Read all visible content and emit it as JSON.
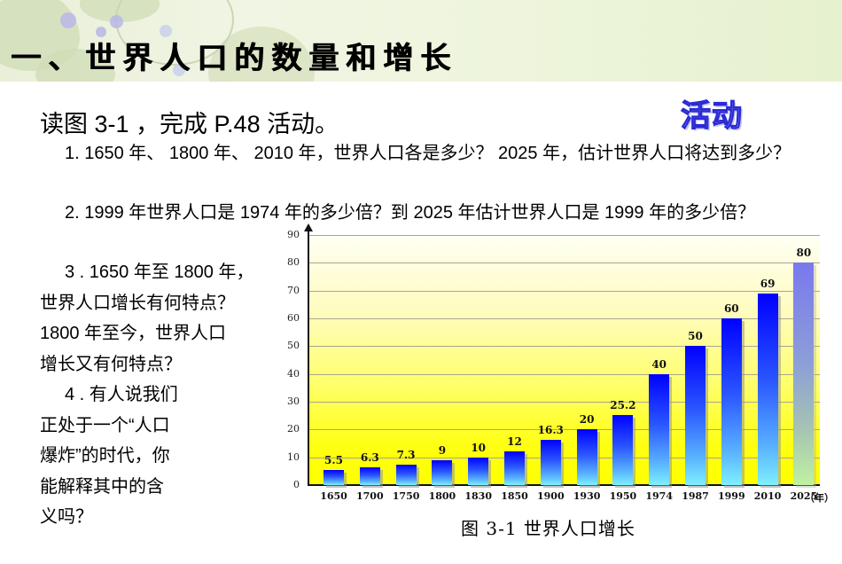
{
  "slide": {
    "title": "一、世界人口的数量和增长",
    "badge": "活动",
    "intro": "读图 3-1 ，完成 P.48 活动。",
    "questions": {
      "q1": "1. 1650 年、 1800 年、 2010 年，世界人口各是多少？ 2025 年，估计世界人口将达到多少？",
      "q2": "2. 1999 年世界人口是 1974 年的多少倍？到 2025 年估计世界人口是 1999 年的多少倍？",
      "q3_lines": [
        "3 . 1650 年至 1800 年，",
        "世界人口增长有何特点？",
        "1800 年至今，世界人口",
        "增长又有何特点？"
      ],
      "q4_lines": [
        "4 . 有人说我们",
        "正处于一个“人口",
        "爆炸”的时代，你",
        "能解释其中的含",
        "义吗？"
      ]
    },
    "caption": "图 3-1   世界人口增长"
  },
  "chart_data": {
    "type": "bar",
    "title": "图 3-1 世界人口增长",
    "xlabel": "（年）",
    "ylabel": "",
    "categories": [
      "1650",
      "1700",
      "1750",
      "1800",
      "1830",
      "1850",
      "1900",
      "1930",
      "1950",
      "1974",
      "1987",
      "1999",
      "2010",
      "2025"
    ],
    "values": [
      5.5,
      6.3,
      7.3,
      9,
      10,
      12,
      16.3,
      20,
      25.2,
      40,
      50,
      60,
      69,
      80
    ],
    "value_labels": [
      "5.5",
      "6.3",
      "7.3",
      "9",
      "10",
      "12",
      "16.3",
      "20",
      "25.2",
      "40",
      "50",
      "60",
      "69",
      "80"
    ],
    "forecast_index": 13,
    "yticks": [
      0,
      10,
      20,
      30,
      40,
      50,
      60,
      70,
      80,
      90
    ],
    "ylim": [
      0,
      90
    ],
    "grid": true,
    "legend": "none",
    "colors": {
      "bar_top": "#0000ff",
      "bar_bottom": "#7ef0ff",
      "forecast_top": "#7a78ee",
      "forecast_bottom": "#bff2a0",
      "background_top": "#fffff4",
      "background_bottom": "#ffff00"
    }
  }
}
